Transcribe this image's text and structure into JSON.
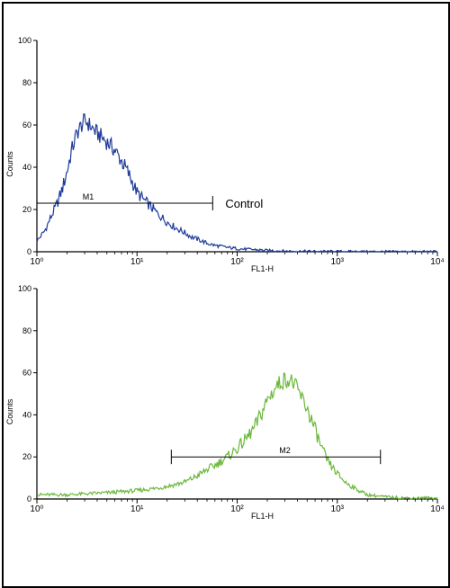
{
  "chart_data": [
    {
      "type": "line",
      "xlabel": "FL1-H",
      "ylabel": "Counts",
      "x_scale": "log",
      "xlim": [
        1,
        10000
      ],
      "ylim": [
        0,
        100
      ],
      "x_tick_labels": [
        "10⁰",
        "10¹",
        "10²",
        "10³",
        "10⁴"
      ],
      "x_tick_values": [
        1,
        10,
        100,
        1000,
        10000
      ],
      "y_tick_labels": [
        "0",
        "20",
        "40",
        "60",
        "80",
        "100"
      ],
      "y_tick_values": [
        0,
        20,
        40,
        60,
        80,
        100
      ],
      "grid": false,
      "series": [
        {
          "color": "#1f3c99",
          "x": [
            1,
            1.2,
            1.4,
            1.6,
            1.8,
            2,
            2.2,
            2.5,
            2.8,
            3,
            3.2,
            3.5,
            4,
            4.5,
            5,
            5.5,
            6,
            7,
            8,
            9,
            10,
            12,
            14,
            16,
            18,
            20,
            25,
            30,
            35,
            40,
            50,
            60,
            70,
            80,
            100,
            120,
            150,
            200,
            250,
            300,
            500,
            1000,
            10000
          ],
          "y": [
            5,
            10,
            17,
            23,
            30,
            38,
            47,
            56,
            60,
            62,
            61,
            59,
            56,
            54,
            52,
            50,
            48,
            43,
            38,
            33,
            28,
            24,
            21,
            18,
            16,
            14,
            11,
            9,
            7,
            6,
            4,
            3,
            2.5,
            2,
            1.5,
            1.2,
            1,
            0.6,
            0.5,
            0.3,
            0.2,
            0.1,
            0
          ]
        }
      ],
      "marker": {
        "label": "M1",
        "x_start": 1,
        "x_end": 57,
        "y": 23,
        "annotation": "Control"
      }
    },
    {
      "type": "line",
      "xlabel": "FL1-H",
      "ylabel": "Counts",
      "x_scale": "log",
      "xlim": [
        1,
        10000
      ],
      "ylim": [
        0,
        100
      ],
      "x_tick_labels": [
        "10⁰",
        "10¹",
        "10²",
        "10³",
        "10⁴"
      ],
      "x_tick_values": [
        1,
        10,
        100,
        1000,
        10000
      ],
      "y_tick_labels": [
        "0",
        "20",
        "40",
        "60",
        "80",
        "100"
      ],
      "y_tick_values": [
        0,
        20,
        40,
        60,
        80,
        100
      ],
      "grid": false,
      "series": [
        {
          "color": "#6ab83a",
          "x": [
            1,
            2,
            5,
            10,
            15,
            20,
            30,
            40,
            50,
            60,
            80,
            100,
            120,
            150,
            180,
            200,
            250,
            300,
            350,
            400,
            500,
            600,
            700,
            800,
            1000,
            1200,
            1500,
            2000,
            3000,
            5000,
            10000
          ],
          "y": [
            2,
            2,
            3,
            4,
            5,
            6,
            8,
            11,
            14,
            16,
            20,
            24,
            28,
            34,
            42,
            47,
            54,
            57,
            56,
            52,
            43,
            33,
            24,
            18,
            12,
            8,
            5,
            2,
            1,
            0.5,
            0.5
          ]
        }
      ],
      "marker": {
        "label": "M2",
        "x_start": 22,
        "x_end": 2700,
        "y": 20
      }
    }
  ]
}
